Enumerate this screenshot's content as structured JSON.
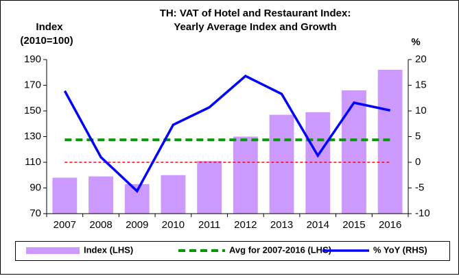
{
  "chart_data": {
    "type": "bar_line",
    "title": [
      "TH: VAT of Hotel and Restaurant Index:",
      "Yearly Average Index and Growth"
    ],
    "y_label": [
      "Index",
      "(2010=100)"
    ],
    "y2_label": "%",
    "categories": [
      "2007",
      "2008",
      "2009",
      "2010",
      "2011",
      "2012",
      "2013",
      "2014",
      "2015",
      "2016"
    ],
    "series": [
      {
        "name": "Index (LHS)",
        "type": "bar",
        "color": "#cc99ff",
        "values": [
          98,
          99,
          93,
          100,
          111,
          130,
          147,
          149,
          166,
          182
        ]
      },
      {
        "name": "Avg for 2007-2016 (LHS)",
        "type": "line",
        "dashed": true,
        "color": "#009900",
        "values": [
          127.5,
          127.5,
          127.5,
          127.5,
          127.5,
          127.5,
          127.5,
          127.5,
          127.5,
          127.5
        ]
      },
      {
        "name": "% YoY (RHS)",
        "type": "line",
        "axis": "y2",
        "color": "#0000ff",
        "values": [
          13.9,
          1.0,
          -5.6,
          7.3,
          10.7,
          16.8,
          13.3,
          1.3,
          11.6,
          10.1
        ]
      }
    ],
    "reference_line": {
      "axis": "y2",
      "value": 0,
      "color": "#ff0000"
    },
    "ylim": [
      70,
      190
    ],
    "yticks": [
      70,
      90,
      110,
      130,
      150,
      170,
      190
    ],
    "y2lim": [
      -10,
      20
    ],
    "y2ticks": [
      -10,
      -5,
      0,
      5,
      10,
      15,
      20
    ],
    "legend": "bottom"
  }
}
